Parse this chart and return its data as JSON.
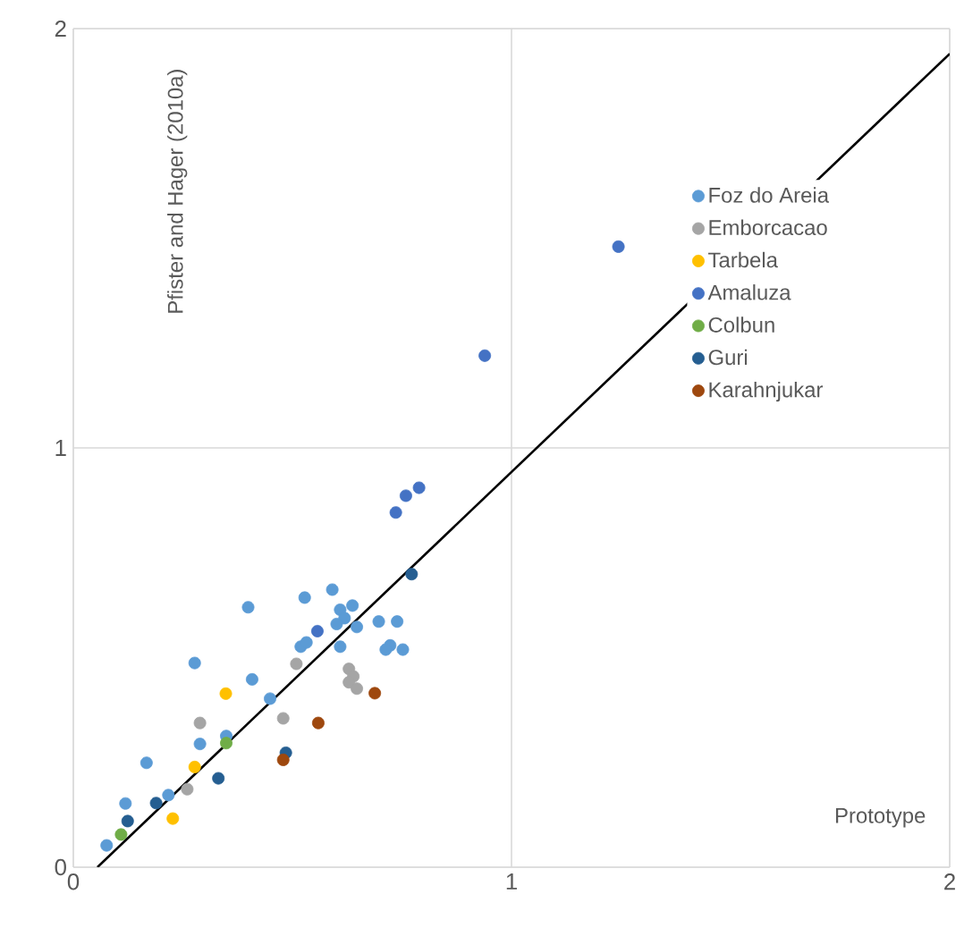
{
  "chart_data": {
    "type": "scatter",
    "xlabel": "Prototype",
    "ylabel": "Pfister and Hager (2010a)",
    "xlim": [
      0,
      2
    ],
    "ylim": [
      0,
      2
    ],
    "xticks": [
      0,
      1,
      2
    ],
    "yticks": [
      0,
      1,
      2
    ],
    "grid": true,
    "legend": "right",
    "marker": "circle",
    "series": [
      {
        "name": "Foz do Areia",
        "color": "#5b9bd5",
        "x": [
          0.076,
          0.119,
          0.167,
          0.217,
          0.277,
          0.289,
          0.349,
          0.399,
          0.408,
          0.449,
          0.528,
          0.519,
          0.532,
          0.591,
          0.609,
          0.637,
          0.619,
          0.601,
          0.647,
          0.609,
          0.697,
          0.739,
          0.723,
          0.752,
          0.713
        ],
        "values": [
          0.052,
          0.152,
          0.249,
          0.172,
          0.487,
          0.294,
          0.313,
          0.62,
          0.448,
          0.402,
          0.643,
          0.526,
          0.536,
          0.662,
          0.614,
          0.624,
          0.594,
          0.58,
          0.573,
          0.526,
          0.586,
          0.586,
          0.529,
          0.519,
          0.519
        ]
      },
      {
        "name": "Emborcacao",
        "color": "#a5a5a5",
        "x": [
          0.26,
          0.289,
          0.479,
          0.509,
          0.629,
          0.639,
          0.629,
          0.647
        ],
        "values": [
          0.186,
          0.344,
          0.355,
          0.485,
          0.473,
          0.455,
          0.441,
          0.426
        ]
      },
      {
        "name": "Tarbela",
        "color": "#ffc000",
        "x": [
          0.348,
          0.277,
          0.227
        ],
        "values": [
          0.414,
          0.239,
          0.116
        ]
      },
      {
        "name": "Amaluza",
        "color": "#4472c4",
        "x": [
          0.557,
          0.939,
          0.736,
          0.759,
          0.789,
          1.244
        ],
        "values": [
          0.563,
          1.22,
          0.846,
          0.886,
          0.905,
          1.48
        ]
      },
      {
        "name": "Colbun",
        "color": "#70ad47",
        "x": [
          0.109,
          0.349
        ],
        "values": [
          0.078,
          0.296
        ]
      },
      {
        "name": "Guri",
        "color": "#255e91",
        "x": [
          0.124,
          0.189,
          0.331,
          0.485,
          0.772
        ],
        "values": [
          0.11,
          0.153,
          0.212,
          0.273,
          0.699
        ]
      },
      {
        "name": "Karahnjukar",
        "color": "#9e480e",
        "x": [
          0.479,
          0.559,
          0.688
        ],
        "values": [
          0.256,
          0.344,
          0.415
        ]
      },
      {
        "type": "line",
        "color": "#000000",
        "marker": "none",
        "x": [
          0.055,
          2
        ],
        "values": [
          0,
          1.94
        ]
      }
    ]
  }
}
